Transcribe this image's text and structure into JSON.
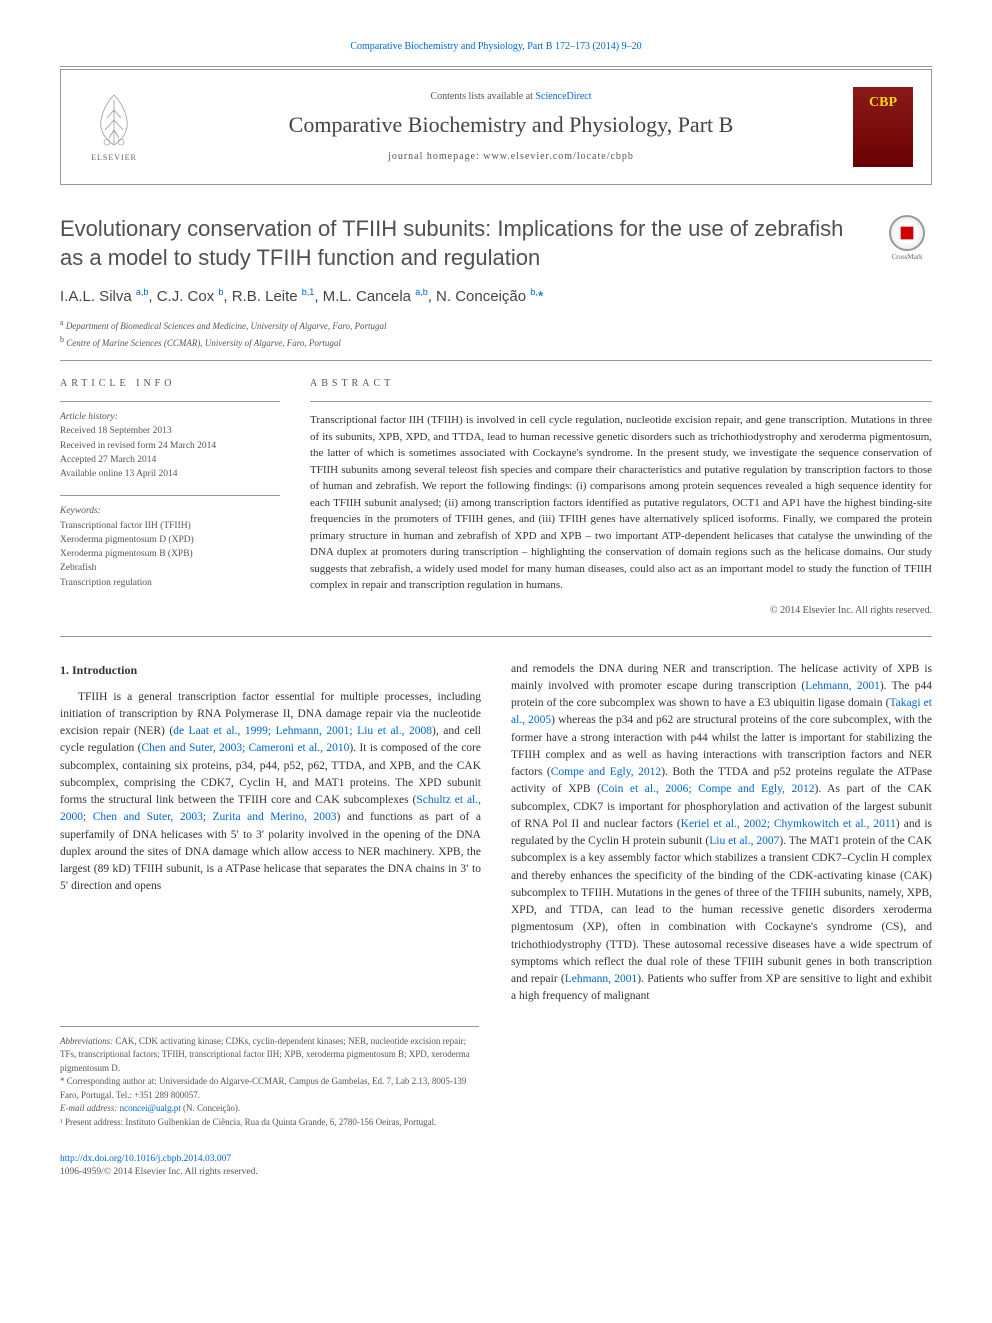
{
  "top_citation": {
    "journal_link": "Comparative Biochemistry and Physiology, Part B 172–173 (2014) 9–20"
  },
  "header": {
    "elsevier_label": "ELSEVIER",
    "contents_prefix": "Contents lists available at ",
    "contents_link": "ScienceDirect",
    "journal_name": "Comparative Biochemistry and Physiology, Part B",
    "homepage_label": "journal homepage: ",
    "homepage_url": "www.elsevier.com/locate/cbpb",
    "cbp_logo": "CBP"
  },
  "crossmark_label": "CrossMark",
  "title": "Evolutionary conservation of TFIIH subunits: Implications for the use of zebrafish as a model to study TFIIH function and regulation",
  "authors_html": "I.A.L. Silva <sup>a,b</sup>, C.J. Cox <sup>b</sup>, R.B. Leite <sup>b,1</sup>, M.L. Cancela <sup>a,b</sup>, N. Conceição <sup>b,</sup><span class='star'>*</span>",
  "affiliations": [
    {
      "sup": "a",
      "text": "Department of Biomedical Sciences and Medicine, University of Algarve, Faro, Portugal"
    },
    {
      "sup": "b",
      "text": "Centre of Marine Sciences (CCMAR), University of Algarve, Faro, Portugal"
    }
  ],
  "article_info": {
    "heading": "ARTICLE INFO",
    "history_label": "Article history:",
    "history": [
      "Received 18 September 2013",
      "Received in revised form 24 March 2014",
      "Accepted 27 March 2014",
      "Available online 13 April 2014"
    ],
    "keywords_label": "Keywords:",
    "keywords": [
      "Transcriptional factor IIH (TFIIH)",
      "Xeroderma pigmentosum D (XPD)",
      "Xeroderma pigmentosum B (XPB)",
      "Zebrafish",
      "Transcription regulation"
    ]
  },
  "abstract": {
    "heading": "ABSTRACT",
    "text": "Transcriptional factor IIH (TFIIH) is involved in cell cycle regulation, nucleotide excision repair, and gene transcription. Mutations in three of its subunits, XPB, XPD, and TTDA, lead to human recessive genetic disorders such as trichothiodystrophy and xeroderma pigmentosum, the latter of which is sometimes associated with Cockayne's syndrome. In the present study, we investigate the sequence conservation of TFIIH subunits among several teleost fish species and compare their characteristics and putative regulation by transcription factors to those of human and zebrafish. We report the following findings: (i) comparisons among protein sequences revealed a high sequence identity for each TFIIH subunit analysed; (ii) among transcription factors identified as putative regulators, OCT1 and AP1 have the highest binding-site frequencies in the promoters of TFIIH genes, and (iii) TFIIH genes have alternatively spliced isoforms. Finally, we compared the protein primary structure in human and zebrafish of XPD and XPB – two important ATP-dependent helicases that catalyse the unwinding of the DNA duplex at promoters during transcription – highlighting the conservation of domain regions such as the helicase domains. Our study suggests that zebrafish, a widely used model for many human diseases, could also act as an important model to study the function of TFIIH complex in repair and transcription regulation in humans.",
    "copyright": "© 2014 Elsevier Inc. All rights reserved."
  },
  "introduction": {
    "heading": "1. Introduction",
    "col1_html": "TFIIH is a general transcription factor essential for multiple processes, including initiation of transcription by RNA Polymerase II, DNA damage repair via the nucleotide excision repair (NER) (<a href='#'>de Laat et al., 1999; Lehmann, 2001; Liu et al., 2008</a>), and cell cycle regulation (<a href='#'>Chen and Suter, 2003; Cameroni et al., 2010</a>). It is composed of the core subcomplex, containing six proteins, p34, p44, p52, p62, TTDA, and XPB, and the CAK subcomplex, comprising the CDK7, Cyclin H, and MAT1 proteins. The XPD subunit forms the structural link between the TFIIH core and CAK subcomplexes (<a href='#'>Schultz et al., 2000; Chen and Suter, 2003; Zurita and Merino, 2003</a>) and functions as part of a superfamily of DNA helicases with 5′ to 3′ polarity involved in the opening of the DNA duplex around the sites of DNA damage which allow access to NER machinery. XPB, the largest (89 kD) TFIIH subunit, is a ATPase helicase that separates the DNA chains in 3′ to 5′ direction and opens",
    "col2_html": "and remodels the DNA during NER and transcription. The helicase activity of XPB is mainly involved with promoter escape during transcription (<a href='#'>Lehmann, 2001</a>). The p44 protein of the core subcomplex was shown to have a E3 ubiquitin ligase domain (<a href='#'>Takagi et al., 2005</a>) whereas the p34 and p62 are structural proteins of the core subcomplex, with the former have a strong interaction with p44 whilst the latter is important for stabilizing the TFIIH complex and as well as having interactions with transcription factors and NER factors (<a href='#'>Compe and Egly, 2012</a>). Both the TTDA and p52 proteins regulate the ATPase activity of XPB (<a href='#'>Coin et al., 2006; Compe and Egly, 2012</a>). As part of the CAK subcomplex, CDK7 is important for phosphorylation and activation of the largest subunit of RNA Pol II and nuclear factors (<a href='#'>Keriel et al., 2002; Chymkowitch et al., 2011</a>) and is regulated by the Cyclin H protein subunit (<a href='#'>Liu et al., 2007</a>). The MAT1 protein of the CAK subcomplex is a key assembly factor which stabilizes a transient CDK7–Cyclin H complex and thereby enhances the specificity of the binding of the CDK-activating kinase (CAK) subcomplex to TFIIH. Mutations in the genes of three of the TFIIH subunits, namely, XPB, XPD, and TTDA, can lead to the human recessive genetic disorders xeroderma pigmentosum (XP), often in combination with Cockayne's syndrome (CS), and trichothiodystrophy (TTD). These autosomal recessive diseases have a wide spectrum of symptoms which reflect the dual role of these TFIIH subunit genes in both transcription and repair (<a href='#'>Lehmann, 2001</a>). Patients who suffer from XP are sensitive to light and exhibit a high frequency of malignant"
  },
  "footnotes": {
    "abbrev_label": "Abbreviations:",
    "abbrev_text": " CAK, CDK activating kinase; CDKs, cyclin-dependent kinases; NER, nucleotide excision repair; TFs, transcriptional factors; TFIIH, transcriptional factor IIH; XPB, xeroderma pigmentosum B; XPD, xeroderma pigmentosum D.",
    "corresponding": "* Corresponding author at: Universidade do Algarve-CCMAR, Campus de Gambelas, Ed. 7, Lab 2.13, 8005-139 Faro, Portugal. Tel.: +351 289 800057.",
    "email_label": "E-mail address: ",
    "email": "nconcei@ualg.pt",
    "email_suffix": " (N. Conceição).",
    "present_address": "¹ Present address: Instituto Gulbenkian de Ciência, Rua da Quinta Grande, 6, 2780-156 Oeiras, Portugal."
  },
  "footer": {
    "doi": "http://dx.doi.org/10.1016/j.cbpb.2014.03.007",
    "issn_copyright": "1096-4959/© 2014 Elsevier Inc. All rights reserved."
  },
  "colors": {
    "link": "#0066cc",
    "text": "#333333",
    "muted": "#555555",
    "rule": "#999999",
    "cbp_bg_top": "#8B1A1A",
    "cbp_bg_bottom": "#6B0000",
    "cbp_text": "#FFD700"
  }
}
